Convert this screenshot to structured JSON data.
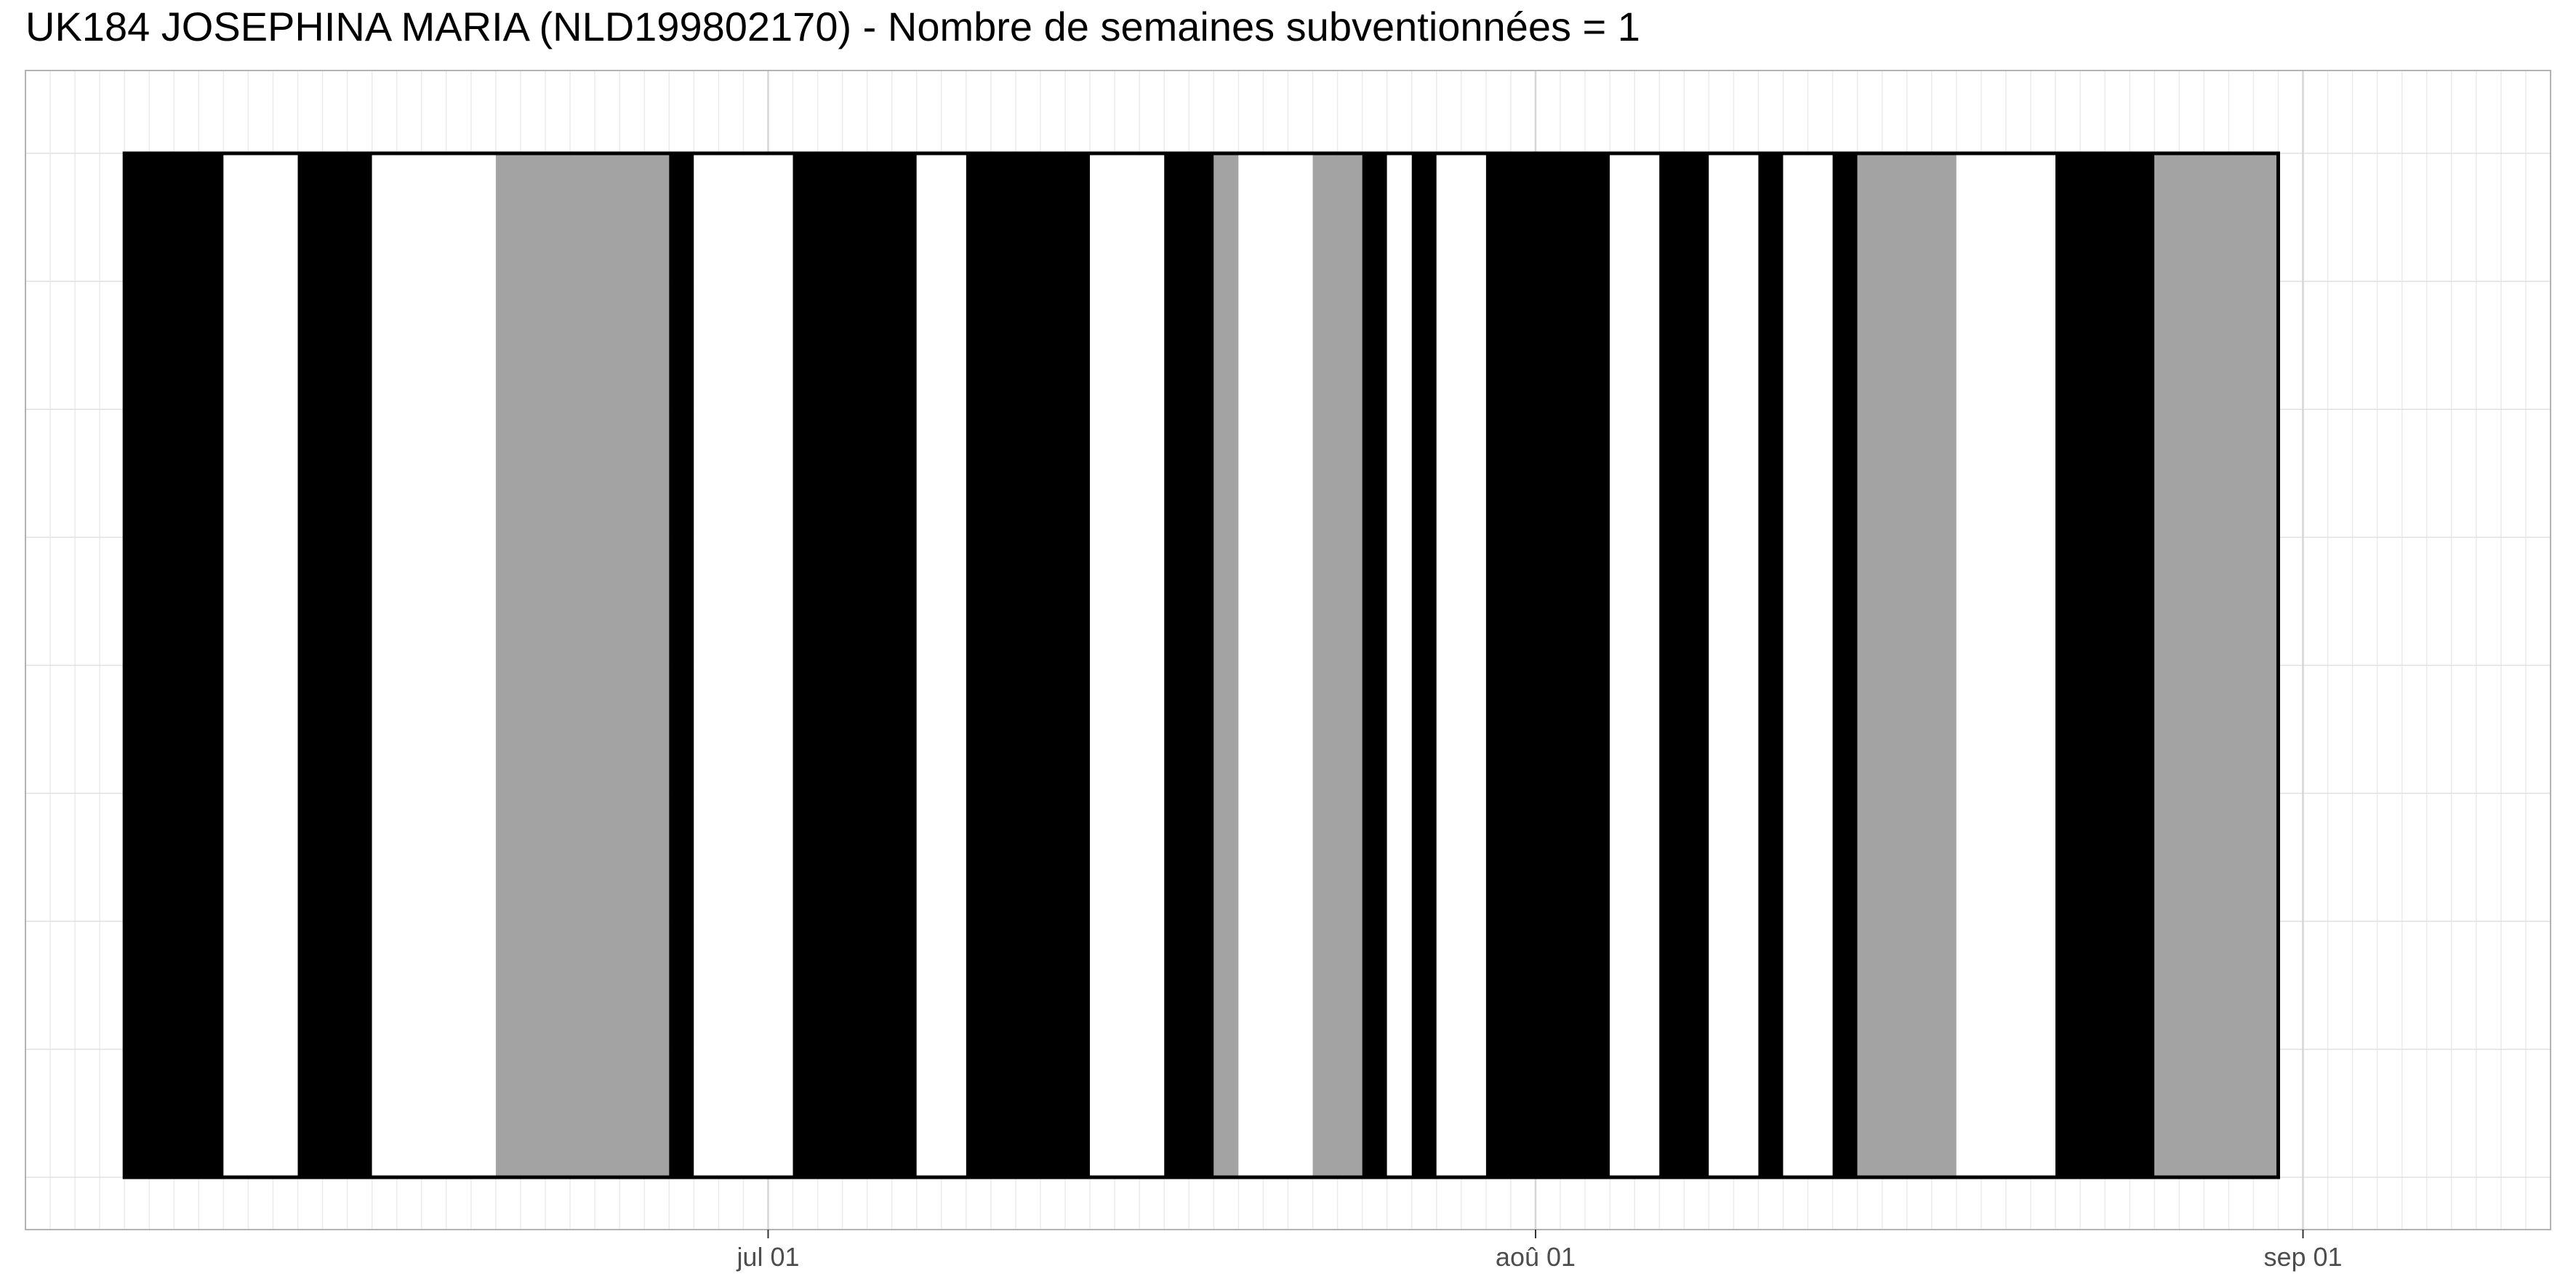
{
  "chart_data": {
    "type": "timeline",
    "title": "UK184 JOSEPHINA MARIA (NLD199802170) - Nombre de semaines subventionnées = 1",
    "xlabel": "",
    "ylabel": "",
    "x_axis": {
      "type": "date",
      "range": [
        "2024-06-01",
        "2024-09-11"
      ]
    },
    "x_ticks": [
      {
        "date": "2024-07-01",
        "label": "jul 01"
      },
      {
        "date": "2024-08-01",
        "label": "aoû 01"
      },
      {
        "date": "2024-09-01",
        "label": "sep 01"
      }
    ],
    "grid": true,
    "legend": "none",
    "colors": {
      "black": "#000000",
      "grey": "#a3a3a3",
      "white": "#ffffff"
    },
    "segments": [
      {
        "start": "2024-06-05",
        "end": "2024-06-09",
        "color": "black"
      },
      {
        "start": "2024-06-09",
        "end": "2024-06-12",
        "color": "white"
      },
      {
        "start": "2024-06-12",
        "end": "2024-06-15",
        "color": "black"
      },
      {
        "start": "2024-06-15",
        "end": "2024-06-20",
        "color": "white"
      },
      {
        "start": "2024-06-20",
        "end": "2024-06-27",
        "color": "grey"
      },
      {
        "start": "2024-06-27",
        "end": "2024-06-28",
        "color": "black"
      },
      {
        "start": "2024-06-28",
        "end": "2024-07-02",
        "color": "white"
      },
      {
        "start": "2024-07-02",
        "end": "2024-07-07",
        "color": "black"
      },
      {
        "start": "2024-07-07",
        "end": "2024-07-09",
        "color": "white"
      },
      {
        "start": "2024-07-09",
        "end": "2024-07-14",
        "color": "black"
      },
      {
        "start": "2024-07-14",
        "end": "2024-07-17",
        "color": "white"
      },
      {
        "start": "2024-07-17",
        "end": "2024-07-19",
        "color": "black"
      },
      {
        "start": "2024-07-19",
        "end": "2024-07-20",
        "color": "grey"
      },
      {
        "start": "2024-07-20",
        "end": "2024-07-23",
        "color": "white"
      },
      {
        "start": "2024-07-23",
        "end": "2024-07-25",
        "color": "grey"
      },
      {
        "start": "2024-07-25",
        "end": "2024-07-26",
        "color": "black"
      },
      {
        "start": "2024-07-26",
        "end": "2024-07-27",
        "color": "white"
      },
      {
        "start": "2024-07-27",
        "end": "2024-07-28",
        "color": "black"
      },
      {
        "start": "2024-07-28",
        "end": "2024-07-30",
        "color": "white"
      },
      {
        "start": "2024-07-30",
        "end": "2024-08-04",
        "color": "black"
      },
      {
        "start": "2024-08-04",
        "end": "2024-08-06",
        "color": "white"
      },
      {
        "start": "2024-08-06",
        "end": "2024-08-08",
        "color": "black"
      },
      {
        "start": "2024-08-08",
        "end": "2024-08-10",
        "color": "white"
      },
      {
        "start": "2024-08-10",
        "end": "2024-08-11",
        "color": "black"
      },
      {
        "start": "2024-08-11",
        "end": "2024-08-13",
        "color": "white"
      },
      {
        "start": "2024-08-13",
        "end": "2024-08-14",
        "color": "black"
      },
      {
        "start": "2024-08-14",
        "end": "2024-08-18",
        "color": "grey"
      },
      {
        "start": "2024-08-18",
        "end": "2024-08-22",
        "color": "white"
      },
      {
        "start": "2024-08-22",
        "end": "2024-08-26",
        "color": "black"
      },
      {
        "start": "2024-08-26",
        "end": "2024-08-31",
        "color": "grey"
      }
    ]
  }
}
